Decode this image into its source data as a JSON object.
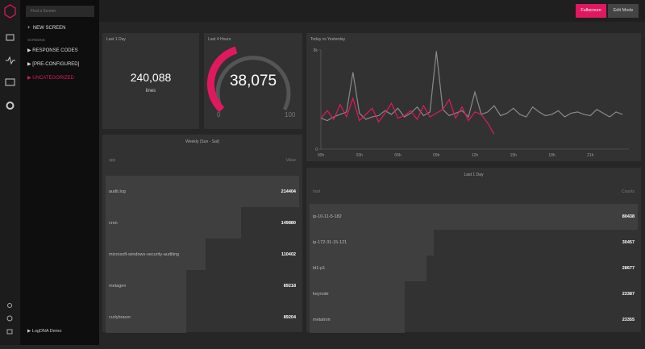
{
  "sidebar": {
    "search_placeholder": "Find a Screen",
    "new_screen": "NEW SCREEN",
    "section": "SCREENS",
    "items": [
      "RESPONSE CODES",
      "[PRE-CONFIGURED]",
      "UNCATEGORIZED"
    ],
    "account": "LogDNA Demo"
  },
  "toolbar": {
    "buttons": [
      "Fullscreen",
      "Edit Mode"
    ]
  },
  "widgets": {
    "count": {
      "title": "Last 1 Day",
      "value": "240,088",
      "unit": "lines"
    },
    "gauge": {
      "title": "Last 4 Hours",
      "value": "38,075",
      "min": "0",
      "max": "100"
    },
    "line_chart": {
      "type": "line",
      "title": "Today vs Yesterday",
      "ylim": [
        0,
        8000
      ],
      "yticks": [
        0,
        {
          "value": 8000,
          "label": "8k"
        }
      ],
      "xtick_labels": [
        "00h",
        "03h",
        "06h",
        "09h",
        "12h",
        "15h",
        "18h",
        "21h"
      ],
      "series": [
        {
          "color": "#8a8a8a",
          "values": [
            2500,
            2300,
            2600,
            2800,
            3000,
            6200,
            2900,
            2400,
            2600,
            2700,
            3100,
            2800,
            3300,
            2600,
            2900,
            3400,
            2700,
            3000,
            7900,
            3200,
            2700,
            2900,
            3100,
            2600,
            4600,
            2800,
            3000,
            3500,
            2700,
            2900,
            3300,
            2800,
            2600,
            3400,
            3000,
            2700,
            2800,
            3100,
            2600,
            2900,
            3000,
            2800,
            2700,
            3200,
            2900,
            2600,
            3000,
            2800
          ]
        },
        {
          "color": "#e0195f",
          "values": [
            2500,
            3100,
            2400,
            3600,
            2600,
            4100,
            2300,
            2800,
            3300,
            2200,
            2900,
            3700,
            2500,
            2700,
            3100,
            2400,
            3500,
            2600,
            2900,
            3200,
            4000,
            2500,
            3400,
            2300,
            3000,
            2800,
            2100,
            1200,
            null,
            null,
            null,
            null,
            null,
            null,
            null,
            null,
            null,
            null,
            null,
            null,
            null,
            null,
            null,
            null,
            null,
            null,
            null,
            null
          ]
        }
      ]
    },
    "weekly": {
      "title": "Weekly (Sun - Sat)",
      "columns": [
        "app",
        "Value"
      ],
      "rows": [
        {
          "label": "audit.log",
          "value": 214404
        },
        {
          "label": "cron",
          "value": 149880
        },
        {
          "label": "microsoft-windows-security-auditing",
          "value": 110402
        },
        {
          "label": "metagen",
          "value": 89218
        },
        {
          "label": "curlybracer",
          "value": 89204
        }
      ]
    },
    "hosts": {
      "title": "Last 1 Day",
      "columns": [
        "host",
        "Counts"
      ],
      "rows": [
        {
          "label": "ip-10-11-5-182",
          "value": 80438
        },
        {
          "label": "ip-172-31-15-121",
          "value": 30457
        },
        {
          "label": "ld1-p1",
          "value": 28677
        },
        {
          "label": "keyrode",
          "value": 23387
        },
        {
          "label": "metatron",
          "value": 23355
        }
      ]
    }
  }
}
